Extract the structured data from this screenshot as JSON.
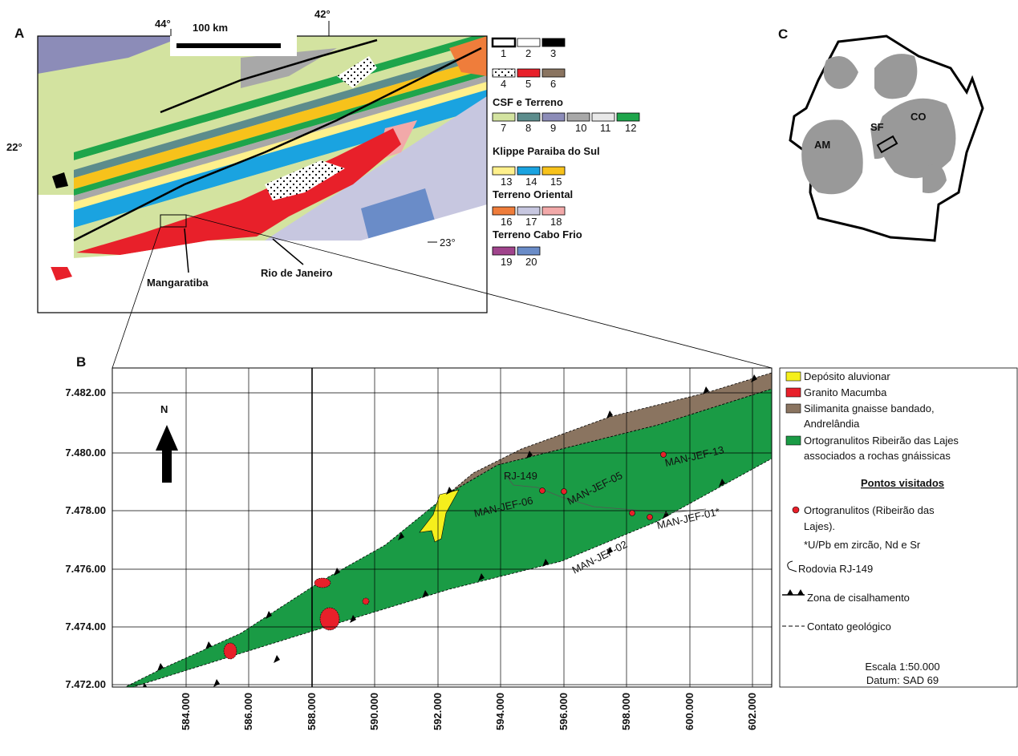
{
  "panel_a": {
    "label": "A",
    "lon_labels": [
      "44°",
      "42°"
    ],
    "lat_labels": [
      "22°",
      "23°"
    ],
    "scale": "100 km",
    "places": [
      "Mangaratiba",
      "Rio de Janeiro"
    ],
    "legend": {
      "numbers": [
        "1",
        "2",
        "3",
        "4",
        "5",
        "6",
        "7",
        "8",
        "9",
        "10",
        "11",
        "12",
        "13",
        "14",
        "15",
        "16",
        "17",
        "18",
        "19",
        "20"
      ],
      "groups": [
        "CSF e Terreno",
        "Klippe Paraiba do Sul",
        "Terreno Oriental",
        "Terreno Cabo Frio"
      ]
    }
  },
  "panel_b": {
    "label": "B",
    "north": "N",
    "road": "RJ-149",
    "y_labels": [
      "7.482.00",
      "7.480.00",
      "7.478.00",
      "7.476.00",
      "7.474.00",
      "7.472.00"
    ],
    "x_labels": [
      "584.000",
      "586.000",
      "588.000",
      "590.000",
      "592.000",
      "594.000",
      "596.000",
      "598.000",
      "600.000",
      "602.000"
    ],
    "samples": [
      "MAN-JEF-05",
      "MAN-JEF-06",
      "MAN-JEF-13",
      "MAN-JEF-02",
      "MAN-JEF-01*"
    ],
    "legend": {
      "units": [
        [
          "Depósito aluvionar"
        ],
        [
          "Granito Macumba"
        ],
        [
          "Silimanita gnaisse bandado,",
          "Andrelândia"
        ],
        [
          "Ortogranulitos Ribeirão das Lajes",
          "associados a rochas gnáissicas"
        ]
      ],
      "section": "Pontos visitados",
      "points": [
        "Ortogranulitos (Ribeirão das",
        "Lajes)."
      ],
      "note": "*U/Pb em zircão, Nd e Sr",
      "road": "Rodovia RJ-149",
      "shear": "Zona de cisalhamento",
      "contact": "Contato geológico",
      "scale": "Escala 1:50.000",
      "datum": "Datum: SAD 69"
    }
  },
  "panel_c": {
    "label": "C",
    "regions": [
      "AM",
      "SF",
      "CO"
    ]
  }
}
